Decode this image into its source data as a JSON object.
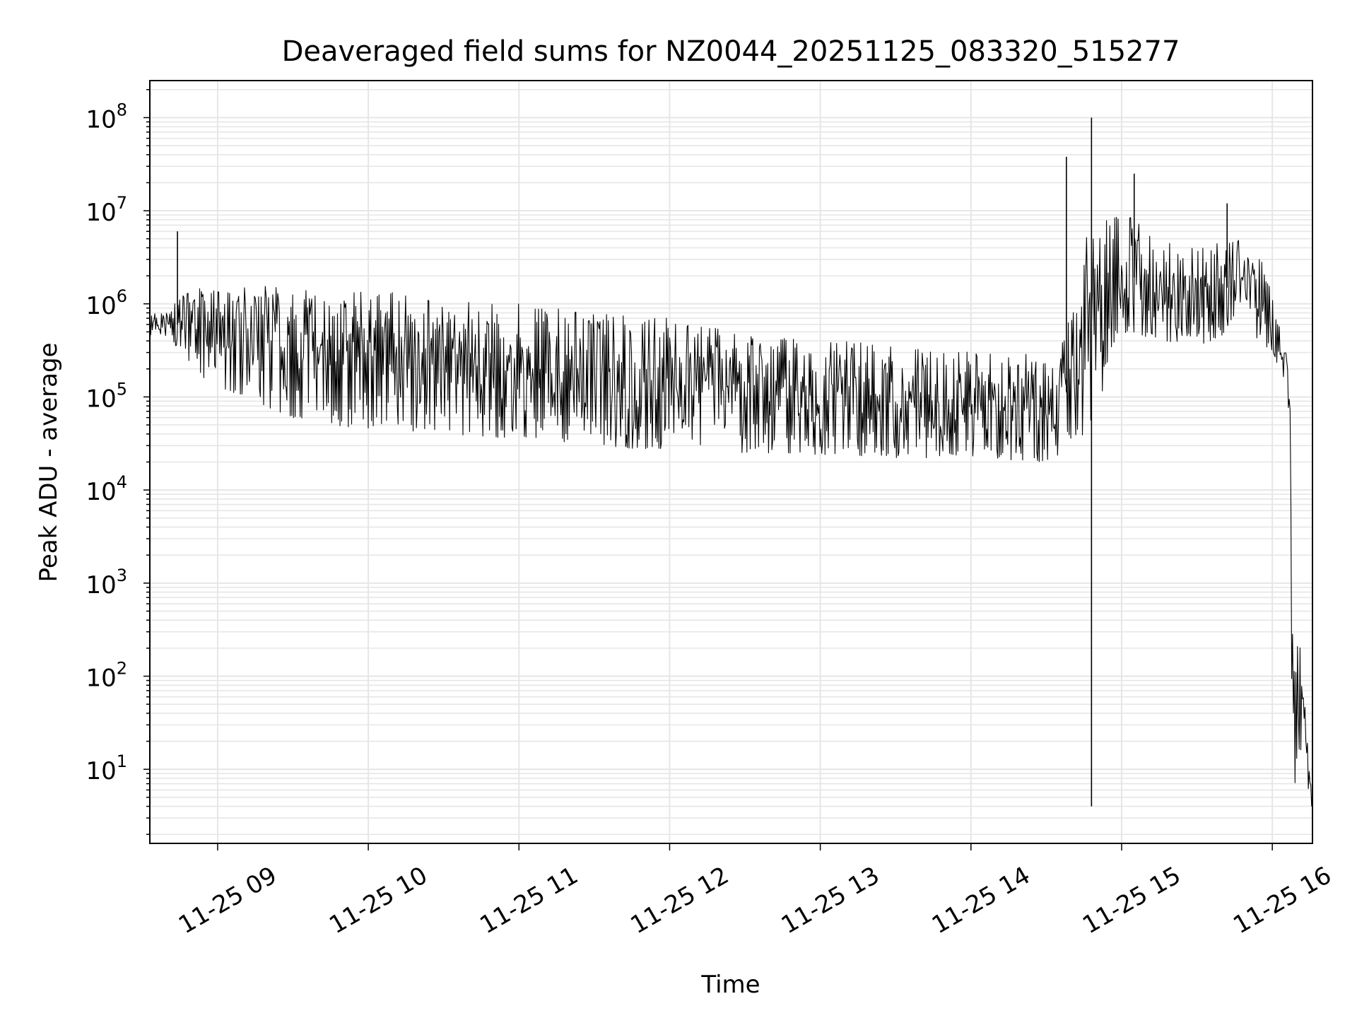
{
  "chart_data": {
    "type": "line",
    "title": "Deaveraged field sums for NZ0044_20251125_083320_515277",
    "xlabel": "Time",
    "ylabel": "Peak ADU - average",
    "yscale": "log",
    "ylim": [
      1.6,
      250000000.0
    ],
    "xlim": [
      "11-25 08:33",
      "11-25 16:16"
    ],
    "grid": true,
    "x_ticks": [
      "11-25 09",
      "11-25 10",
      "11-25 11",
      "11-25 12",
      "11-25 13",
      "11-25 14",
      "11-25 15",
      "11-25 16"
    ],
    "y_ticks": [
      {
        "base": "10",
        "exp": "1",
        "value": 10
      },
      {
        "base": "10",
        "exp": "2",
        "value": 100
      },
      {
        "base": "10",
        "exp": "3",
        "value": 1000
      },
      {
        "base": "10",
        "exp": "4",
        "value": 10000
      },
      {
        "base": "10",
        "exp": "5",
        "value": 100000
      },
      {
        "base": "10",
        "exp": "6",
        "value": 1000000
      },
      {
        "base": "10",
        "exp": "7",
        "value": 10000000
      },
      {
        "base": "10",
        "exp": "8",
        "value": 100000000
      }
    ],
    "series": [
      {
        "color": "#000000",
        "x": [
          "11-25 08:33",
          "11-25 08:40",
          "11-25 08:45",
          "11-25 08:50",
          "11-25 08:55",
          "11-25 09:10",
          "11-25 09:30",
          "11-25 09:45",
          "11-25 10:00",
          "11-25 10:15",
          "11-25 10:30",
          "11-25 10:45",
          "11-25 11:00",
          "11-25 11:15",
          "11-25 11:30",
          "11-25 11:45",
          "11-25 12:00",
          "11-25 12:15",
          "11-25 12:30",
          "11-25 12:45",
          "11-25 13:00",
          "11-25 13:15",
          "11-25 13:30",
          "11-25 13:45",
          "11-25 14:00",
          "11-25 14:15",
          "11-25 14:30",
          "11-25 14:38",
          "11-25 14:45",
          "11-25 14:50",
          "11-25 14:55",
          "11-25 15:00",
          "11-25 15:15",
          "11-25 15:30",
          "11-25 15:45",
          "11-25 15:55",
          "11-25 16:00",
          "11-25 16:05",
          "11-25 16:07",
          "11-25 16:08",
          "11-25 16:16"
        ],
        "upper": [
          800000,
          800000,
          1200000,
          1400000,
          1500000,
          1600000,
          1500000,
          1400000,
          1400000,
          1300000,
          1200000,
          1100000,
          1000000,
          900000,
          800000,
          750000,
          700000,
          600000,
          500000,
          450000,
          400000,
          400000,
          380000,
          360000,
          300000,
          300000,
          300000,
          500000,
          5000000,
          8000000,
          10000000,
          10000000,
          5000000,
          4000000,
          5000000,
          4000000,
          1200000,
          500000,
          150000,
          3000,
          4.5
        ],
        "lower": [
          450000,
          450000,
          300000,
          200000,
          150000,
          100000,
          60000,
          50000,
          45000,
          40000,
          40000,
          38000,
          35000,
          32000,
          30000,
          28000,
          27000,
          26000,
          25000,
          25000,
          24000,
          23000,
          22000,
          22000,
          22000,
          21000,
          20000,
          25000,
          40000,
          50000,
          300000,
          500000,
          400000,
          350000,
          500000,
          400000,
          300000,
          150000,
          30000,
          4,
          4
        ],
        "spikes": [
          {
            "x": "11-25 08:44",
            "y": 6000000
          },
          {
            "x": "11-25 14:38",
            "y": 38000000
          },
          {
            "x": "11-25 14:48",
            "y": 100000000
          },
          {
            "x": "11-25 14:48",
            "y": 4
          },
          {
            "x": "11-25 15:05",
            "y": 25000000
          },
          {
            "x": "11-25 15:42",
            "y": 12000000
          }
        ]
      }
    ]
  }
}
